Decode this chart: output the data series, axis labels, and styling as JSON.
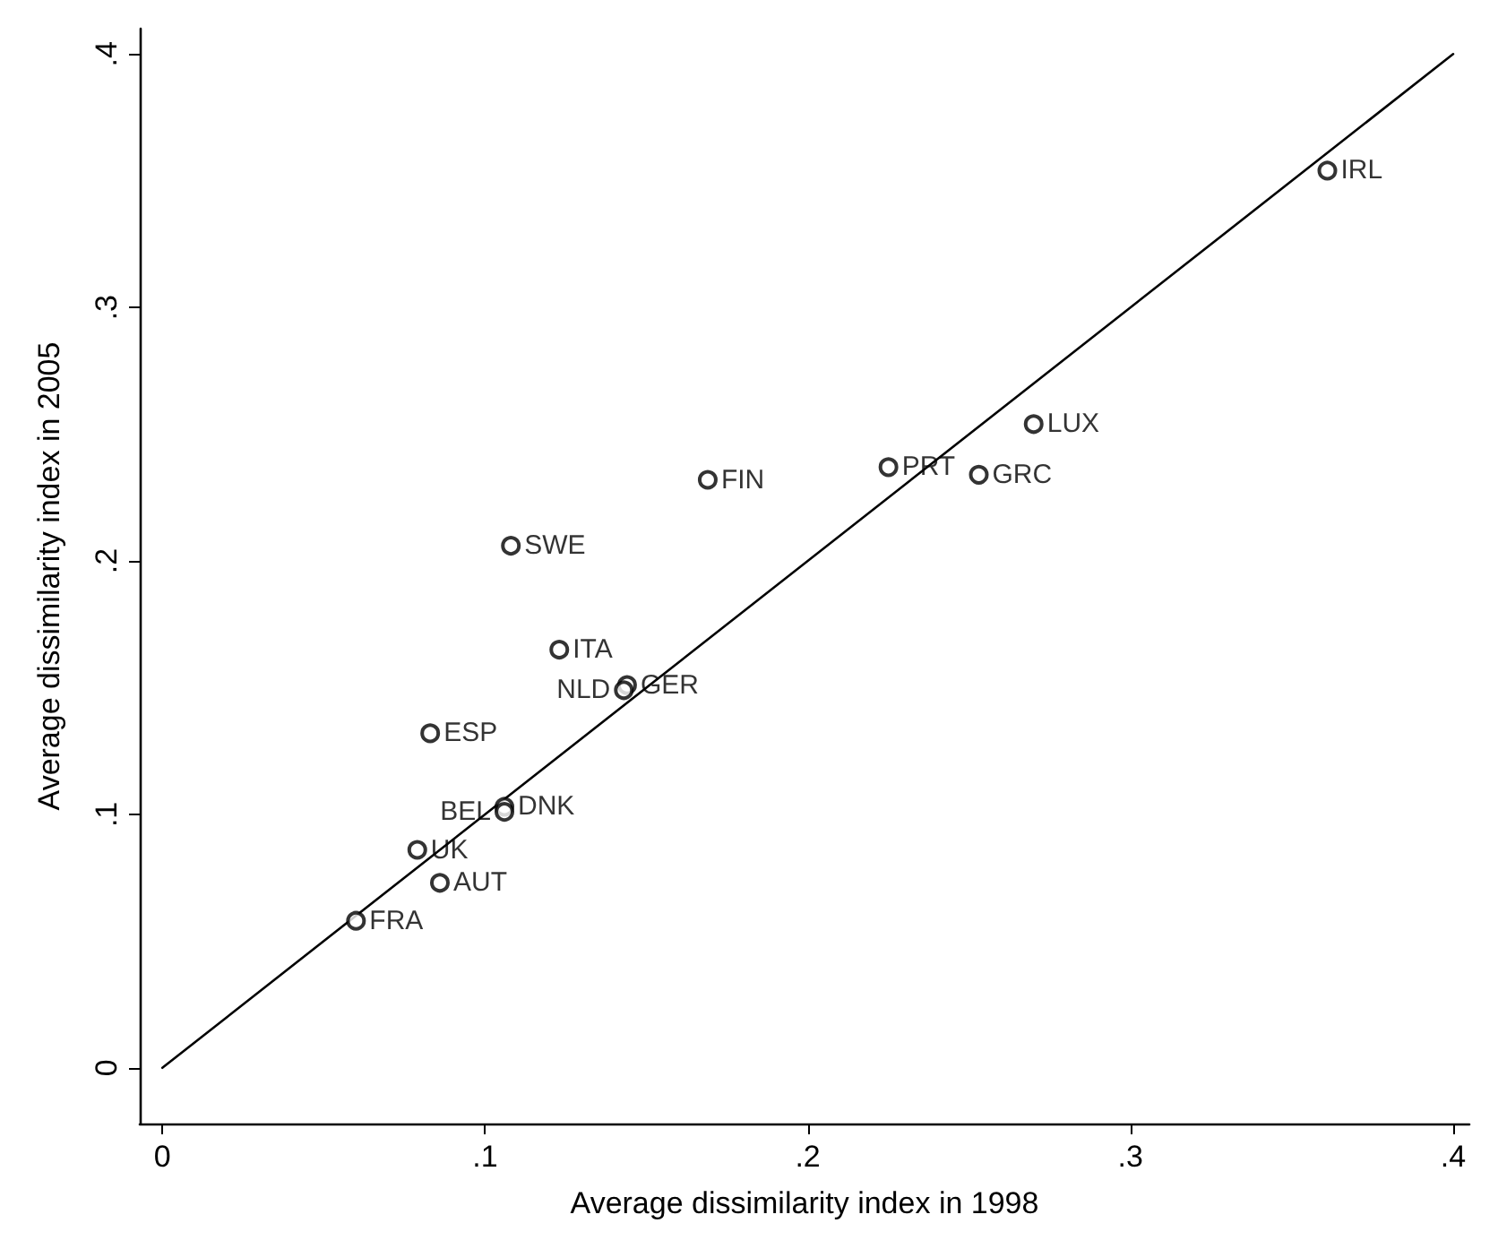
{
  "chart_data": {
    "type": "scatter",
    "xlabel": "Average dissimilarity index in 1998",
    "ylabel": "Average dissimilarity index in 2005",
    "xlim": [
      -0.007,
      0.405
    ],
    "ylim": [
      -0.022,
      0.41
    ],
    "xticks": [
      {
        "value": 0,
        "label": "0"
      },
      {
        "value": 0.1,
        "label": ".1"
      },
      {
        "value": 0.2,
        "label": ".2"
      },
      {
        "value": 0.3,
        "label": ".3"
      },
      {
        "value": 0.4,
        "label": ".4"
      }
    ],
    "yticks": [
      {
        "value": 0,
        "label": "0"
      },
      {
        "value": 0.1,
        "label": ".1"
      },
      {
        "value": 0.2,
        "label": ".2"
      },
      {
        "value": 0.3,
        "label": ".3"
      },
      {
        "value": 0.4,
        "label": ".4"
      }
    ],
    "grid": false,
    "series": [
      {
        "color": "#000000",
        "marker": "circle",
        "x": [
          0.361,
          0.27,
          0.225,
          0.253,
          0.169,
          0.108,
          0.123,
          0.144,
          0.143,
          0.083,
          0.106,
          0.106,
          0.079,
          0.086,
          0.06
        ],
        "values": [
          0.354,
          0.254,
          0.237,
          0.234,
          0.232,
          0.206,
          0.165,
          0.151,
          0.149,
          0.132,
          0.103,
          0.101,
          0.086,
          0.073,
          0.058
        ],
        "value_labels": [
          "IRL",
          "LUX",
          "PRT",
          "GRC",
          "FIN",
          "SWE",
          "ITA",
          "GER",
          "NLD",
          "ESP",
          "DNK",
          "BEL",
          "UK",
          "AUT",
          "FRA"
        ]
      },
      {
        "type": "line",
        "color": "#000000",
        "marker": "none",
        "line_style": "solid",
        "x": [
          0,
          0.4
        ],
        "values": [
          0,
          0.4
        ]
      }
    ]
  }
}
